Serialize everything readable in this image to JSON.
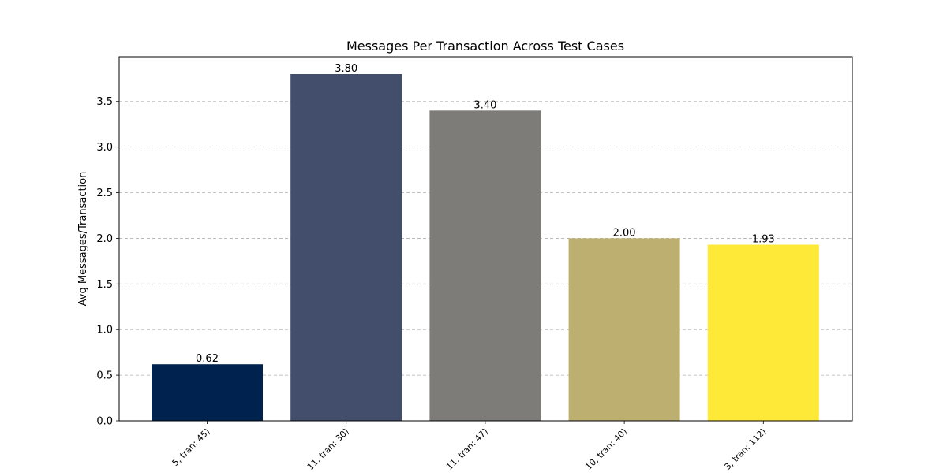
{
  "chart_data": {
    "type": "bar",
    "title": "Messages Per Transaction Across Test Cases",
    "xlabel": "",
    "ylabel": "Avg Messages/Transaction",
    "categories": [
      "5, tran: 45)",
      "11, tran: 30)",
      "11, tran: 47)",
      "10, tran: 40)",
      "3, tran: 112)"
    ],
    "values": [
      0.62,
      3.8,
      3.4,
      2.0,
      1.93
    ],
    "value_labels": [
      "0.62",
      "3.80",
      "3.40",
      "2.00",
      "1.93"
    ],
    "colors": [
      "#00224e",
      "#434e6c",
      "#7d7c78",
      "#bcaf6f",
      "#fee838"
    ],
    "ylim": [
      0,
      3.99
    ],
    "yticks": [
      0.0,
      0.5,
      1.0,
      1.5,
      2.0,
      2.5,
      3.0,
      3.5
    ],
    "ytick_labels": [
      "0.0",
      "0.5",
      "1.0",
      "1.5",
      "2.0",
      "2.5",
      "3.0",
      "3.5"
    ],
    "grid": "y-dashed",
    "legend": "none"
  }
}
